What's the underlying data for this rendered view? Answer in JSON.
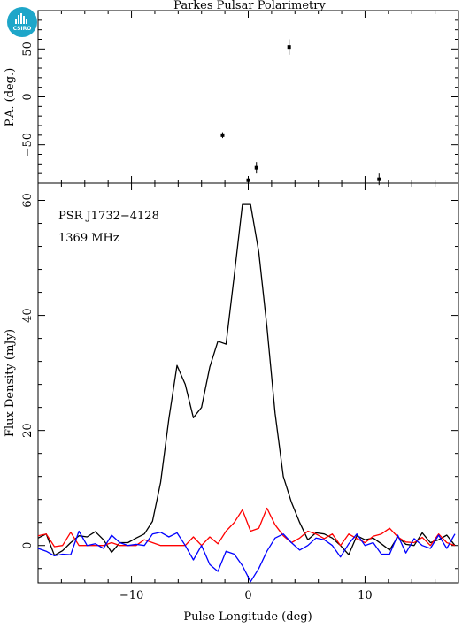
{
  "logo": {
    "text": "CSIRO",
    "color": "#1ea6c9"
  },
  "chart_data": {
    "type": "line",
    "title": "Parkes Pulsar Polarimetry",
    "xlabel": "Pulse Longitude (deg)",
    "xlim": [
      -18,
      18
    ],
    "x_ticks": [
      -10,
      0,
      10
    ],
    "pa_panel": {
      "ylabel": "P.A. (deg.)",
      "ylim": [
        -90,
        90
      ],
      "y_ticks": [
        -50,
        0,
        50
      ],
      "points": [
        {
          "x": -2.2,
          "y": -40,
          "err": 3
        },
        {
          "x": 0.0,
          "y": -87,
          "err": 4
        },
        {
          "x": 0.7,
          "y": -74,
          "err": 6
        },
        {
          "x": 3.5,
          "y": 52,
          "err": 8
        },
        {
          "x": 11.2,
          "y": -86,
          "err": 6
        }
      ]
    },
    "flux_panel": {
      "ylabel": "Flux Density (mJy)",
      "ylim": [
        -6.5,
        63
      ],
      "y_ticks": [
        0,
        20,
        40,
        60
      ],
      "annotations": [
        "PSR J1732−4128",
        "1369 MHz"
      ],
      "x": [
        -18,
        -17.3,
        -16.6,
        -15.9,
        -15.2,
        -14.5,
        -13.8,
        -13.1,
        -12.4,
        -11.7,
        -11.0,
        -10.3,
        -9.6,
        -8.9,
        -8.2,
        -7.5,
        -6.8,
        -6.1,
        -5.4,
        -4.7,
        -4.0,
        -3.3,
        -2.6,
        -1.9,
        -1.2,
        -0.5,
        0.2,
        0.9,
        1.6,
        2.3,
        3.0,
        3.7,
        4.4,
        5.1,
        5.8,
        6.5,
        7.2,
        7.9,
        8.6,
        9.3,
        10.0,
        10.7,
        11.4,
        12.1,
        12.8,
        13.5,
        14.2,
        14.9,
        15.6,
        16.3,
        17.0,
        17.7
      ],
      "series": [
        {
          "color": "#000000",
          "values": [
            1.3,
            2.0,
            -1.7,
            -0.9,
            0.5,
            1.7,
            1.5,
            2.4,
            1.0,
            -1.2,
            0.5,
            0.5,
            1.3,
            2.0,
            4.2,
            11.0,
            22.0,
            31.3,
            28.0,
            22.2,
            24.0,
            31.0,
            35.5,
            35.0,
            47.0,
            59.3,
            59.3,
            51.0,
            38.0,
            23.0,
            12.0,
            7.5,
            4.0,
            1.0,
            2.2,
            2.0,
            1.3,
            0.0,
            -1.6,
            1.7,
            1.0,
            1.3,
            0.3,
            -0.8,
            1.5,
            0.2,
            0.0,
            2.2,
            0.5,
            1.0,
            1.8,
            0.0
          ]
        },
        {
          "color": "#ff0000",
          "values": [
            1.7,
            2.0,
            -0.2,
            0.0,
            2.3,
            0.0,
            0.0,
            0.0,
            0.0,
            0.5,
            0.0,
            0.0,
            0.0,
            1.0,
            0.5,
            0.0,
            0.0,
            0.0,
            0.0,
            1.5,
            0.0,
            1.5,
            0.3,
            2.5,
            4.0,
            6.2,
            2.5,
            3.0,
            6.5,
            3.6,
            1.7,
            0.5,
            1.3,
            2.5,
            2.0,
            1.2,
            2.0,
            0.0,
            2.0,
            1.2,
            0.5,
            1.6,
            2.0,
            3.0,
            1.5,
            0.6,
            0.5,
            1.4,
            0.0,
            2.0,
            0.5,
            0.0
          ]
        },
        {
          "color": "#0000ff",
          "values": [
            -0.5,
            -1.0,
            -1.8,
            -1.5,
            -1.6,
            2.5,
            0.0,
            0.3,
            -0.5,
            1.8,
            0.5,
            0.0,
            0.2,
            0.0,
            2.0,
            2.3,
            1.5,
            2.2,
            0.0,
            -2.5,
            0.0,
            -3.3,
            -4.5,
            -1.0,
            -1.5,
            -3.5,
            -6.3,
            -4.0,
            -1.0,
            1.3,
            2.0,
            0.5,
            -0.8,
            0.0,
            1.3,
            1.0,
            0.0,
            -2.0,
            0.3,
            2.0,
            0.0,
            0.5,
            -1.5,
            -1.5,
            1.8,
            -1.3,
            1.2,
            0.0,
            -0.5,
            1.8,
            -0.5,
            2.0
          ]
        }
      ]
    }
  }
}
